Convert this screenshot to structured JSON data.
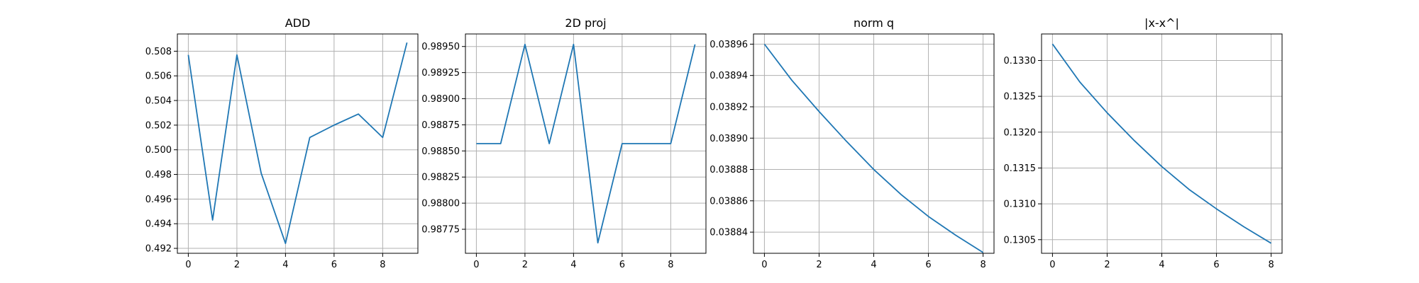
{
  "chart_data": [
    {
      "type": "line",
      "title": "ADD",
      "x": [
        0,
        1,
        2,
        3,
        4,
        5,
        6,
        7,
        8,
        9
      ],
      "series": [
        {
          "values": [
            0.5077,
            0.4943,
            0.5077,
            0.4981,
            0.4924,
            0.501,
            0.502,
            0.5029,
            0.501,
            0.5087
          ]
        }
      ],
      "xlim": [
        -0.45,
        9.45
      ],
      "ylim": [
        0.4916,
        0.5094
      ],
      "xticks": [
        0,
        2,
        4,
        6,
        8
      ],
      "xtick_labels": [
        "0",
        "2",
        "4",
        "6",
        "8"
      ],
      "yticks": [
        0.492,
        0.494,
        0.496,
        0.498,
        0.5,
        0.502,
        0.504,
        0.506,
        0.508
      ],
      "ytick_labels": [
        "0.492",
        "0.494",
        "0.496",
        "0.498",
        "0.500",
        "0.502",
        "0.504",
        "0.506",
        "0.508"
      ],
      "grid": true,
      "color": "#1f77b4"
    },
    {
      "type": "line",
      "title": "2D proj",
      "x": [
        0,
        1,
        2,
        3,
        4,
        5,
        6,
        7,
        8,
        9
      ],
      "series": [
        {
          "values": [
            0.98857,
            0.98857,
            0.98952,
            0.98857,
            0.98952,
            0.98762,
            0.98857,
            0.98857,
            0.98857,
            0.98952
          ]
        }
      ],
      "xlim": [
        -0.45,
        9.45
      ],
      "ylim": [
        0.98752,
        0.98962
      ],
      "xticks": [
        0,
        2,
        4,
        6,
        8
      ],
      "xtick_labels": [
        "0",
        "2",
        "4",
        "6",
        "8"
      ],
      "yticks": [
        0.98775,
        0.988,
        0.98825,
        0.9885,
        0.98875,
        0.989,
        0.98925,
        0.9895
      ],
      "ytick_labels": [
        "0.98775",
        "0.98800",
        "0.98825",
        "0.98850",
        "0.98875",
        "0.98900",
        "0.98925",
        "0.98950"
      ],
      "grid": true,
      "color": "#1f77b4"
    },
    {
      "type": "line",
      "title": "norm q",
      "x": [
        0,
        1,
        2,
        3,
        4,
        5,
        6,
        7,
        8
      ],
      "series": [
        {
          "values": [
            0.03896,
            0.038937,
            0.038917,
            0.038898,
            0.03888,
            0.038864,
            0.03885,
            0.038838,
            0.038827
          ]
        }
      ],
      "xlim": [
        -0.4,
        8.4
      ],
      "ylim": [
        0.0388265,
        0.0389665
      ],
      "xticks": [
        0,
        2,
        4,
        6,
        8
      ],
      "xtick_labels": [
        "0",
        "2",
        "4",
        "6",
        "8"
      ],
      "yticks": [
        0.03884,
        0.03886,
        0.03888,
        0.0389,
        0.03892,
        0.03894,
        0.03896
      ],
      "ytick_labels": [
        "0.03884",
        "0.03886",
        "0.03888",
        "0.03890",
        "0.03892",
        "0.03894",
        "0.03896"
      ],
      "grid": true,
      "color": "#1f77b4"
    },
    {
      "type": "line",
      "title": "|x-x^|",
      "x": [
        0,
        1,
        2,
        3,
        4,
        5,
        6,
        7,
        8
      ],
      "series": [
        {
          "values": [
            0.13323,
            0.1327,
            0.13227,
            0.13188,
            0.13152,
            0.1312,
            0.13093,
            0.13068,
            0.13045
          ]
        }
      ],
      "xlim": [
        -0.4,
        8.4
      ],
      "ylim": [
        0.13031,
        0.13337
      ],
      "xticks": [
        0,
        2,
        4,
        6,
        8
      ],
      "xtick_labels": [
        "0",
        "2",
        "4",
        "6",
        "8"
      ],
      "yticks": [
        0.1305,
        0.131,
        0.1315,
        0.132,
        0.1325,
        0.133
      ],
      "ytick_labels": [
        "0.1305",
        "0.1310",
        "0.1315",
        "0.1320",
        "0.1325",
        "0.1330"
      ],
      "grid": true,
      "color": "#1f77b4"
    }
  ]
}
